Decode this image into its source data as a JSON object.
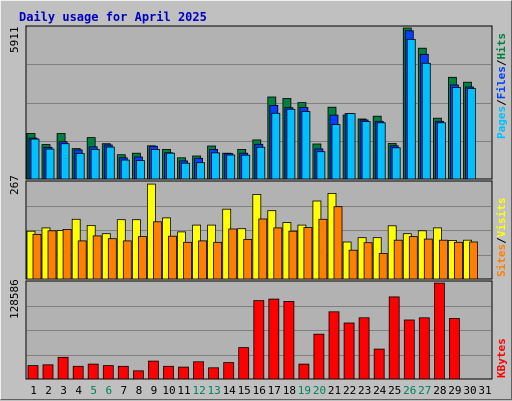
{
  "colors": {
    "background": "#c0c0c0",
    "plot": "#b2b2b2",
    "hits": "#008040",
    "files": "#0040ff",
    "pages": "#00c0ff",
    "visits": "#ffff00",
    "sites": "#ff8000",
    "kbytes": "#ff0000",
    "weekday_label": "#000000",
    "weekend_label": "#00805c",
    "title": "#0000c0"
  },
  "chart_data": [
    {
      "type": "bar",
      "title": "Daily usage for April 2025",
      "panel": "hits-files-pages",
      "axis_max_label": "5911",
      "ylim": [
        0,
        5911
      ],
      "side_labels": [
        "Pages",
        "Files",
        "Hits"
      ],
      "categories": [
        "1",
        "2",
        "3",
        "4",
        "5",
        "6",
        "7",
        "8",
        "9",
        "10",
        "11",
        "12",
        "13",
        "14",
        "15",
        "16",
        "17",
        "18",
        "19",
        "20",
        "21",
        "22",
        "23",
        "24",
        "25",
        "26",
        "27",
        "28",
        "29",
        "30",
        "31"
      ],
      "weekend_days": [
        "5",
        "6",
        "12",
        "13",
        "19",
        "20",
        "26",
        "27"
      ],
      "series": [
        {
          "name": "Hits",
          "values": [
            1780,
            1350,
            1780,
            1190,
            1620,
            1380,
            950,
            1010,
            1300,
            1160,
            830,
            900,
            1290,
            1010,
            1160,
            1530,
            3210,
            3150,
            2990,
            1370,
            2810,
            2500,
            2350,
            2460,
            1390,
            5910,
            5120,
            2380,
            3980,
            3790,
            0
          ]
        },
        {
          "name": "Files",
          "values": [
            1600,
            1240,
            1460,
            1140,
            1260,
            1330,
            830,
            860,
            1280,
            1030,
            710,
            810,
            1160,
            1000,
            1010,
            1360,
            2880,
            2790,
            2800,
            1180,
            2500,
            2560,
            2310,
            2260,
            1300,
            5800,
            4880,
            2260,
            3680,
            3600,
            0
          ]
        },
        {
          "name": "Pages",
          "values": [
            1560,
            1170,
            1380,
            1000,
            1160,
            1250,
            740,
            720,
            1160,
            1010,
            620,
            640,
            1020,
            940,
            930,
            1240,
            2570,
            2730,
            2640,
            1070,
            2130,
            2560,
            2250,
            2200,
            1220,
            5460,
            4530,
            2200,
            3580,
            3540,
            0
          ]
        }
      ]
    },
    {
      "type": "bar",
      "panel": "visits-sites",
      "axis_max_label": "267",
      "ylim": [
        0,
        267
      ],
      "side_labels": [
        "Sites",
        "Visits"
      ],
      "categories": [
        "1",
        "2",
        "3",
        "4",
        "5",
        "6",
        "7",
        "8",
        "9",
        "10",
        "11",
        "12",
        "13",
        "14",
        "15",
        "16",
        "17",
        "18",
        "19",
        "20",
        "21",
        "22",
        "23",
        "24",
        "25",
        "26",
        "27",
        "28",
        "29",
        "30",
        "31"
      ],
      "series": [
        {
          "name": "Visits",
          "values": [
            133,
            142,
            135,
            166,
            149,
            126,
            165,
            165,
            264,
            170,
            131,
            150,
            150,
            194,
            140,
            235,
            190,
            157,
            150,
            217,
            238,
            103,
            115,
            115,
            148,
            126,
            134,
            142,
            107,
            108,
            0
          ]
        },
        {
          "name": "Sites",
          "values": [
            124,
            134,
            138,
            106,
            120,
            112,
            106,
            118,
            159,
            119,
            102,
            106,
            102,
            139,
            110,
            167,
            142,
            133,
            143,
            166,
            201,
            80,
            101,
            71,
            108,
            118,
            111,
            108,
            102,
            103,
            0
          ]
        }
      ]
    },
    {
      "type": "bar",
      "panel": "kbytes",
      "axis_max_label": "128586",
      "ylim": [
        0,
        128586
      ],
      "side_labels": [
        "KBytes"
      ],
      "categories": [
        "1",
        "2",
        "3",
        "4",
        "5",
        "6",
        "7",
        "8",
        "9",
        "10",
        "11",
        "12",
        "13",
        "14",
        "15",
        "16",
        "17",
        "18",
        "19",
        "20",
        "21",
        "22",
        "23",
        "24",
        "25",
        "26",
        "27",
        "28",
        "29",
        "30",
        "31"
      ],
      "series": [
        {
          "name": "KBytes",
          "values": [
            18000,
            19000,
            29000,
            17000,
            20000,
            18000,
            17000,
            11000,
            24000,
            17000,
            16000,
            23000,
            15000,
            22000,
            42000,
            105000,
            107000,
            104000,
            20000,
            60000,
            90000,
            75000,
            82000,
            40000,
            110000,
            79000,
            82000,
            128500,
            81000,
            0,
            0
          ]
        }
      ]
    }
  ]
}
